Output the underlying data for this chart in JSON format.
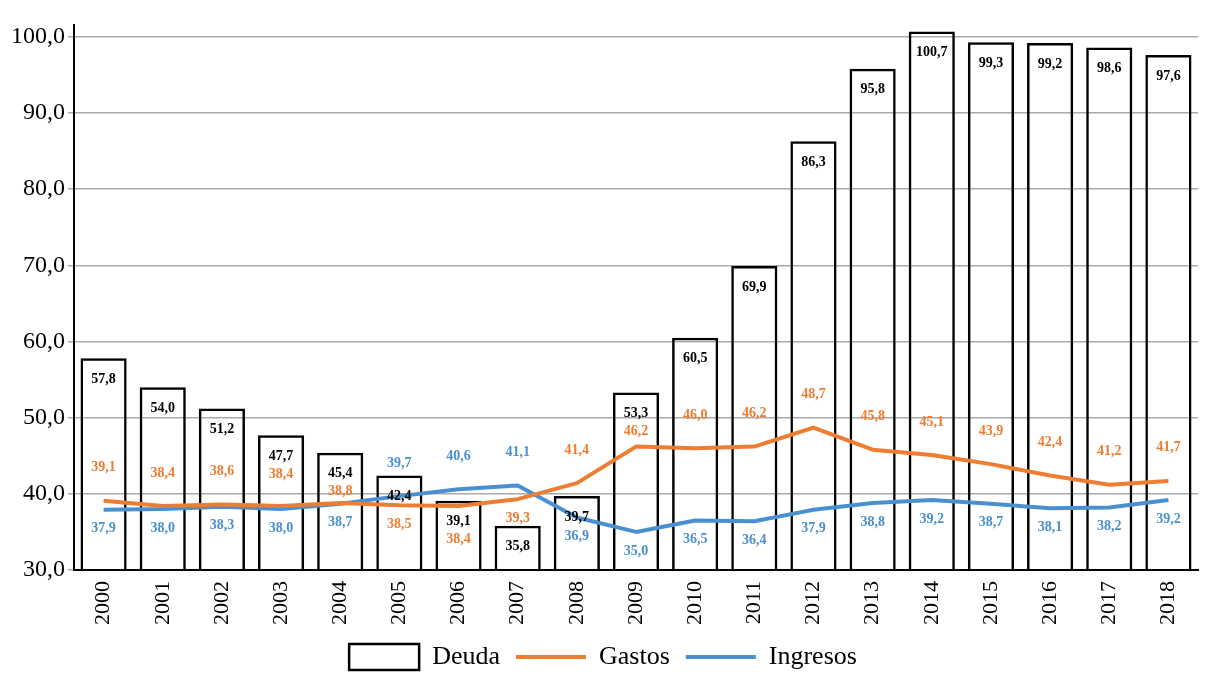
{
  "chart_data": {
    "type": "bar",
    "categories": [
      "2000",
      "2001",
      "2002",
      "2003",
      "2004",
      "2005",
      "2006",
      "2007",
      "2008",
      "2009",
      "2010",
      "2011",
      "2012",
      "2013",
      "2014",
      "2015",
      "2016",
      "2017",
      "2018"
    ],
    "series": [
      {
        "name": "Deuda",
        "color": "#000000",
        "values": [
          57.8,
          54.0,
          51.2,
          47.7,
          45.4,
          42.4,
          39.1,
          35.8,
          39.7,
          53.3,
          60.5,
          69.9,
          86.3,
          95.8,
          100.7,
          99.3,
          99.2,
          98.6,
          97.6
        ],
        "value_labels": [
          "57,8",
          "54,0",
          "51,2",
          "47,7",
          "45,4",
          "42,4",
          "39,1",
          "35,8",
          "39,7",
          "53,3",
          "60,5",
          "69,9",
          "86,3",
          "95,8",
          "100,7",
          "99,3",
          "99,2",
          "98,6",
          "97,6"
        ]
      },
      {
        "name": "Gastos",
        "type": "line",
        "color": "#ed7d31",
        "values": [
          39.1,
          38.4,
          38.6,
          38.4,
          38.8,
          38.5,
          38.4,
          39.3,
          41.4,
          46.2,
          46.0,
          46.2,
          48.7,
          45.8,
          45.1,
          43.9,
          42.4,
          41.2,
          41.7
        ],
        "value_labels": [
          "39,1",
          "38,4",
          "38,6",
          "38,4",
          "38,8",
          "38,5",
          "38,4",
          "39,3",
          "41,4",
          "46,2",
          "46,0",
          "46,2",
          "48,7",
          "45,8",
          "45,1",
          "43,9",
          "42,4",
          "41,2",
          "41,7"
        ]
      },
      {
        "name": "Ingresos",
        "type": "line",
        "color": "#4a90d0",
        "values": [
          37.9,
          38.0,
          38.3,
          38.0,
          38.7,
          39.7,
          40.6,
          41.1,
          36.9,
          35.0,
          36.5,
          36.4,
          37.9,
          38.8,
          39.2,
          38.7,
          38.1,
          38.2,
          39.2
        ],
        "value_labels": [
          "37,9",
          "38,0",
          "38,3",
          "38,0",
          "38,7",
          "39,7",
          "40,6",
          "41,1",
          "36,9",
          "35,0",
          "36,5",
          "36,4",
          "37,9",
          "38,8",
          "39,2",
          "38,7",
          "38,1",
          "38,2",
          "39,2"
        ]
      }
    ],
    "ylim": [
      30,
      101.5
    ],
    "yticks": [
      {
        "value": 30,
        "label": "30,0"
      },
      {
        "value": 40,
        "label": "40,0"
      },
      {
        "value": 50,
        "label": "50,0"
      },
      {
        "value": 60,
        "label": "60,0"
      },
      {
        "value": 70,
        "label": "70,0"
      },
      {
        "value": 80,
        "label": "80,0"
      },
      {
        "value": 90,
        "label": "90,0"
      },
      {
        "value": 100,
        "label": "100,0"
      }
    ],
    "grid": "y",
    "legend": "bottom"
  }
}
